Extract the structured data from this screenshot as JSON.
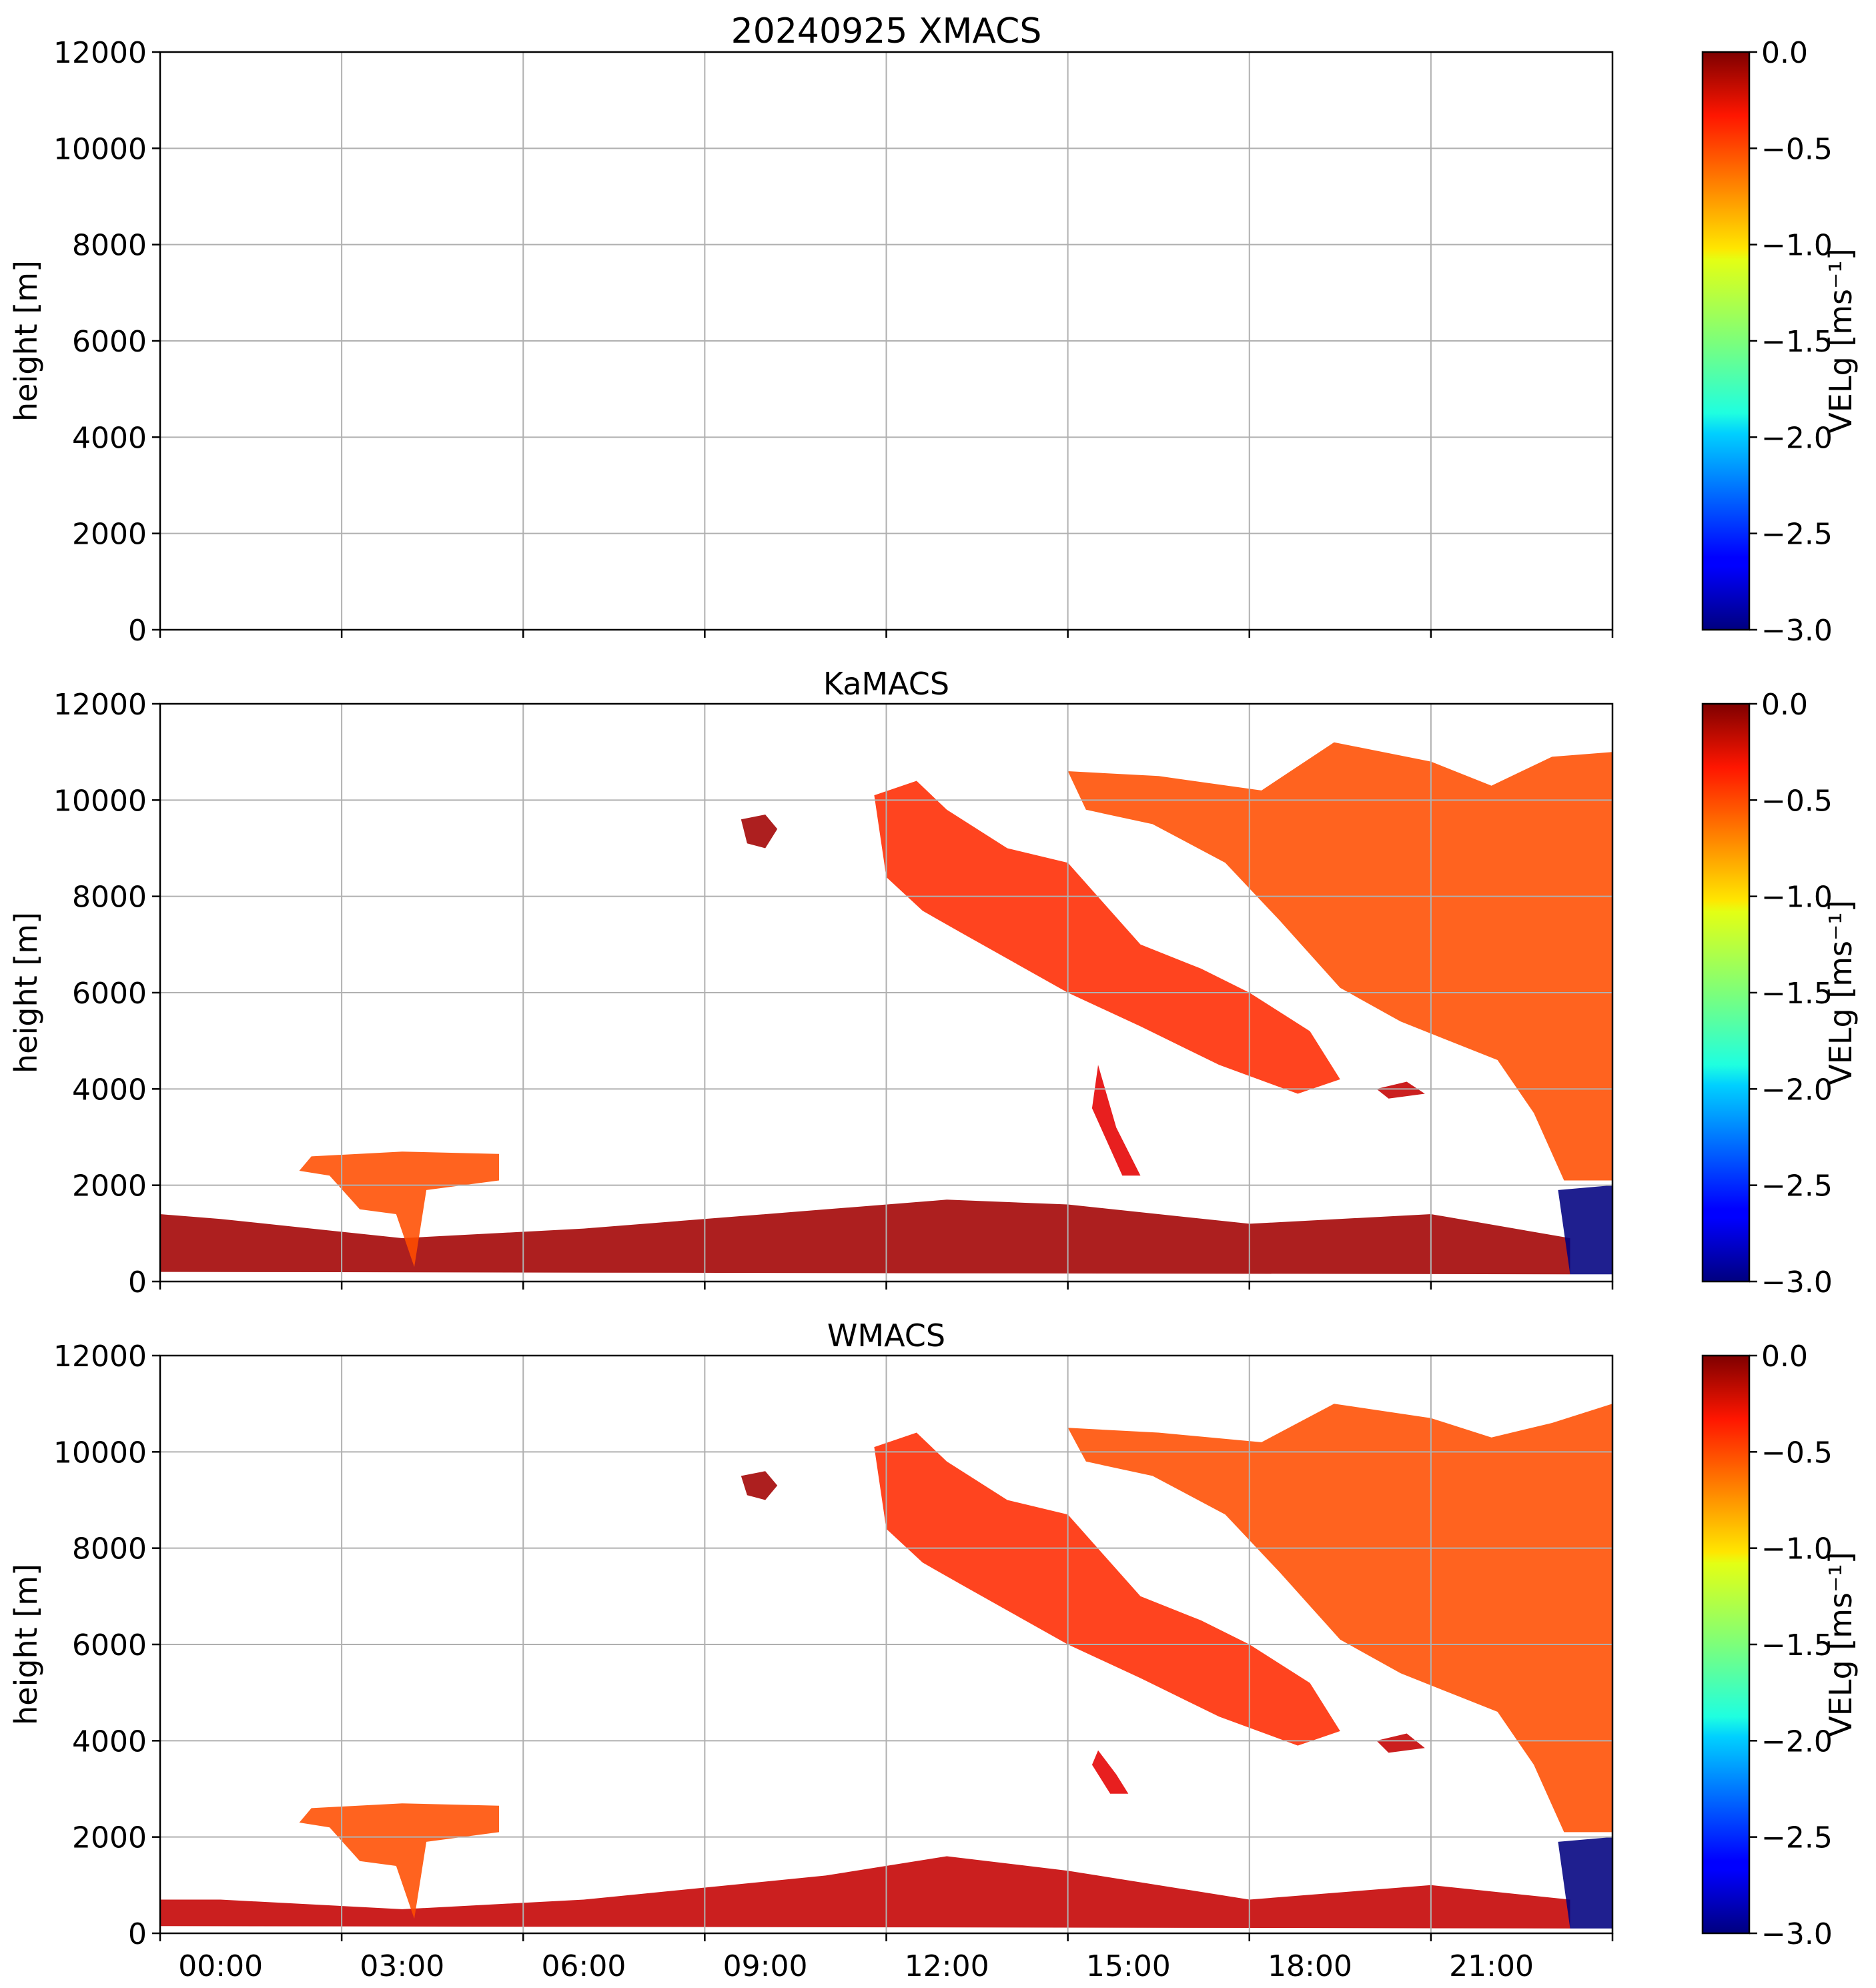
{
  "chart_data": [
    {
      "type": "heatmap",
      "instrument": "XMACS",
      "title": "20240925 XMACS",
      "ylabel": "height [m]",
      "xlabel": "",
      "ylim": [
        0,
        12000
      ],
      "xlim_hours": [
        -1,
        23
      ],
      "yticks": [
        "0",
        "2000",
        "4000",
        "6000",
        "8000",
        "10000",
        "12000"
      ],
      "xticks": [],
      "grid": true,
      "data_present": false,
      "colorbar": {
        "label": "VELg [ms⁻¹]",
        "ticks": [
          "−3.0",
          "−2.5",
          "−2.0",
          "−1.5",
          "−1.0",
          "−0.5",
          "0.0"
        ],
        "vmin": -3.0,
        "vmax": 0.0,
        "cmap": "jet"
      },
      "echo_regions": []
    },
    {
      "type": "heatmap",
      "instrument": "KaMACS",
      "title": "KaMACS",
      "ylabel": "height [m]",
      "xlabel": "",
      "ylim": [
        0,
        12000
      ],
      "xlim_hours": [
        -1,
        23
      ],
      "yticks": [
        "0",
        "2000",
        "4000",
        "6000",
        "8000",
        "10000",
        "12000"
      ],
      "xticks": [],
      "grid": true,
      "data_present": true,
      "colorbar": {
        "label": "VELg [ms⁻¹]",
        "ticks": [
          "−3.0",
          "−2.5",
          "−2.0",
          "−1.5",
          "−1.0",
          "−0.5",
          "0.0"
        ],
        "vmin": -3.0,
        "vmax": 0.0,
        "cmap": "jet"
      },
      "echo_regions": [
        {
          "name": "boundary-layer-clutter",
          "points": [
            [
              -1,
              200
            ],
            [
              22.3,
              150
            ],
            [
              22.3,
              900
            ],
            [
              20,
              1400
            ],
            [
              17,
              1200
            ],
            [
              14,
              1600
            ],
            [
              12,
              1700
            ],
            [
              10,
              1500
            ],
            [
              6,
              1100
            ],
            [
              3,
              900
            ],
            [
              0,
              1300
            ],
            [
              -1,
              1400
            ]
          ],
          "velocity": -0.1
        },
        {
          "name": "low-cloud-0230",
          "points": [
            [
              1.3,
              2300
            ],
            [
              1.5,
              2600
            ],
            [
              3,
              2700
            ],
            [
              4.6,
              2650
            ],
            [
              4.6,
              2100
            ],
            [
              3.4,
              1900
            ],
            [
              3.2,
              300
            ],
            [
              2.9,
              1400
            ],
            [
              2.3,
              1500
            ],
            [
              1.8,
              2200
            ]
          ],
          "velocity": -0.6
        },
        {
          "name": "cirrus-patch-0830",
          "points": [
            [
              8.6,
              9600
            ],
            [
              9.0,
              9700
            ],
            [
              9.2,
              9400
            ],
            [
              9.0,
              9000
            ],
            [
              8.7,
              9100
            ]
          ],
          "velocity": -0.1
        },
        {
          "name": "cirrus-band-1",
          "points": [
            [
              10.8,
              10100
            ],
            [
              11.5,
              10400
            ],
            [
              12.0,
              9800
            ],
            [
              13.0,
              9000
            ],
            [
              14.0,
              8700
            ],
            [
              15.2,
              7000
            ],
            [
              16.2,
              6500
            ],
            [
              17.0,
              6000
            ],
            [
              18.0,
              5200
            ],
            [
              18.5,
              4200
            ],
            [
              17.8,
              3900
            ],
            [
              16.5,
              4500
            ],
            [
              15.2,
              5300
            ],
            [
              14.0,
              6000
            ],
            [
              12.3,
              7200
            ],
            [
              11.6,
              7700
            ],
            [
              11.0,
              8400
            ]
          ],
          "velocity": -0.5
        },
        {
          "name": "cirrus-band-2",
          "points": [
            [
              14.0,
              10600
            ],
            [
              15.5,
              10500
            ],
            [
              17.2,
              10200
            ],
            [
              18.4,
              11200
            ],
            [
              20.0,
              10800
            ],
            [
              21.0,
              10300
            ],
            [
              22.0,
              10900
            ],
            [
              23.0,
              11000
            ],
            [
              23.0,
              2100
            ],
            [
              22.2,
              2100
            ],
            [
              21.7,
              3500
            ],
            [
              21.1,
              4600
            ],
            [
              19.5,
              5400
            ],
            [
              18.5,
              6100
            ],
            [
              17.5,
              7500
            ],
            [
              16.6,
              8700
            ],
            [
              15.4,
              9500
            ],
            [
              14.3,
              9800
            ]
          ],
          "velocity": -0.6
        },
        {
          "name": "precip-shaft-2220",
          "points": [
            [
              22.1,
              1900
            ],
            [
              23.0,
              2000
            ],
            [
              23.0,
              150
            ],
            [
              22.3,
              150
            ]
          ],
          "velocity": -3.0
        },
        {
          "name": "fallstreak-1530",
          "points": [
            [
              14.5,
              4500
            ],
            [
              14.8,
              3200
            ],
            [
              15.2,
              2200
            ],
            [
              14.9,
              2200
            ],
            [
              14.4,
              3600
            ]
          ],
          "velocity": -0.3
        },
        {
          "name": "cloudlet-1930",
          "points": [
            [
              19.1,
              4000
            ],
            [
              19.6,
              4150
            ],
            [
              19.9,
              3900
            ],
            [
              19.3,
              3800
            ]
          ],
          "velocity": -0.2
        }
      ]
    },
    {
      "type": "heatmap",
      "instrument": "WMACS",
      "title": "WMACS",
      "ylabel": "height [m]",
      "xlabel": "",
      "ylim": [
        0,
        12000
      ],
      "xlim_hours": [
        -1,
        23
      ],
      "yticks": [
        "0",
        "2000",
        "4000",
        "6000",
        "8000",
        "10000",
        "12000"
      ],
      "xticks": [
        "00:00",
        "03:00",
        "06:00",
        "09:00",
        "12:00",
        "15:00",
        "18:00",
        "21:00"
      ],
      "grid": true,
      "data_present": true,
      "colorbar": {
        "label": "VELg [ms⁻¹]",
        "ticks": [
          "−3.0",
          "−2.5",
          "−2.0",
          "−1.5",
          "−1.0",
          "−0.5",
          "0.0"
        ],
        "vmin": -3.0,
        "vmax": 0.0,
        "cmap": "jet"
      },
      "echo_regions": [
        {
          "name": "boundary-layer-clutter",
          "points": [
            [
              -1,
              150
            ],
            [
              22.3,
              100
            ],
            [
              22.3,
              700
            ],
            [
              20,
              1000
            ],
            [
              17,
              700
            ],
            [
              14,
              1300
            ],
            [
              12,
              1600
            ],
            [
              10,
              1200
            ],
            [
              6,
              700
            ],
            [
              3,
              500
            ],
            [
              0,
              700
            ],
            [
              -1,
              700
            ]
          ],
          "velocity": -0.2
        },
        {
          "name": "low-cloud-0230",
          "points": [
            [
              1.3,
              2300
            ],
            [
              1.5,
              2600
            ],
            [
              3,
              2700
            ],
            [
              4.6,
              2650
            ],
            [
              4.6,
              2100
            ],
            [
              3.4,
              1900
            ],
            [
              3.2,
              300
            ],
            [
              2.9,
              1400
            ],
            [
              2.3,
              1500
            ],
            [
              1.8,
              2200
            ]
          ],
          "velocity": -0.6
        },
        {
          "name": "cirrus-patch-0830",
          "points": [
            [
              8.6,
              9500
            ],
            [
              9.0,
              9600
            ],
            [
              9.2,
              9300
            ],
            [
              9.0,
              9000
            ],
            [
              8.7,
              9100
            ]
          ],
          "velocity": -0.1
        },
        {
          "name": "cirrus-band-1",
          "points": [
            [
              10.8,
              10100
            ],
            [
              11.5,
              10400
            ],
            [
              12.0,
              9800
            ],
            [
              13.0,
              9000
            ],
            [
              14.0,
              8700
            ],
            [
              15.2,
              7000
            ],
            [
              16.2,
              6500
            ],
            [
              17.0,
              6000
            ],
            [
              18.0,
              5200
            ],
            [
              18.5,
              4200
            ],
            [
              17.8,
              3900
            ],
            [
              16.5,
              4500
            ],
            [
              15.2,
              5300
            ],
            [
              14.0,
              6000
            ],
            [
              12.3,
              7200
            ],
            [
              11.6,
              7700
            ],
            [
              11.0,
              8400
            ]
          ],
          "velocity": -0.5
        },
        {
          "name": "cirrus-band-2",
          "points": [
            [
              14.0,
              10500
            ],
            [
              15.5,
              10400
            ],
            [
              17.2,
              10200
            ],
            [
              18.4,
              11000
            ],
            [
              20.0,
              10700
            ],
            [
              21.0,
              10300
            ],
            [
              22.0,
              10600
            ],
            [
              23.0,
              11000
            ],
            [
              23.0,
              2100
            ],
            [
              22.2,
              2100
            ],
            [
              21.7,
              3500
            ],
            [
              21.1,
              4600
            ],
            [
              19.5,
              5400
            ],
            [
              18.5,
              6100
            ],
            [
              17.5,
              7500
            ],
            [
              16.6,
              8700
            ],
            [
              15.4,
              9500
            ],
            [
              14.3,
              9800
            ]
          ],
          "velocity": -0.6
        },
        {
          "name": "precip-shaft-2220",
          "points": [
            [
              22.1,
              1900
            ],
            [
              23.0,
              2000
            ],
            [
              23.0,
              100
            ],
            [
              22.3,
              100
            ]
          ],
          "velocity": -3.0
        },
        {
          "name": "fallstreak-1530",
          "points": [
            [
              14.5,
              3800
            ],
            [
              14.8,
              3300
            ],
            [
              15.0,
              2900
            ],
            [
              14.7,
              2900
            ],
            [
              14.4,
              3500
            ]
          ],
          "velocity": -0.3
        },
        {
          "name": "cloudlet-1930",
          "points": [
            [
              19.1,
              4000
            ],
            [
              19.6,
              4150
            ],
            [
              19.9,
              3850
            ],
            [
              19.3,
              3750
            ]
          ],
          "velocity": -0.2
        }
      ]
    }
  ]
}
